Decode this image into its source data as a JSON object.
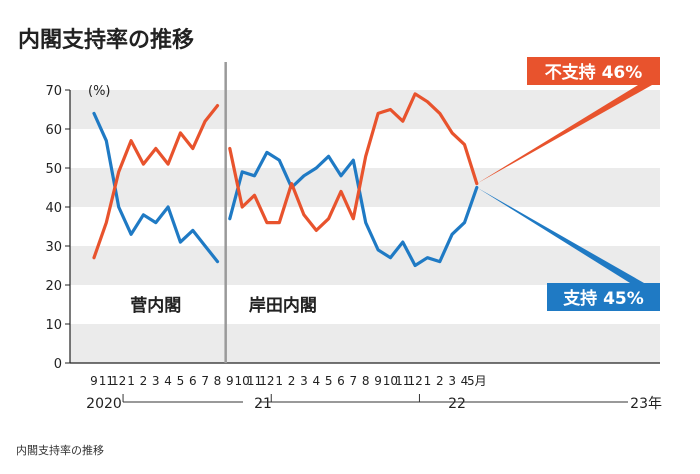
{
  "title": "内閣支持率の推移",
  "caption": "内閣支持率の推移",
  "colors": {
    "support": "#1f7ac4",
    "disapprove": "#e8532d",
    "band": "#ebebeb",
    "divider": "#9a9a9a"
  },
  "chart_data": {
    "type": "line",
    "title": "内閣支持率の推移",
    "ylabel": "(%)",
    "ylim": [
      0,
      70
    ],
    "yticks": [
      0,
      10,
      20,
      30,
      40,
      50,
      60,
      70
    ],
    "x_labels": [
      "9",
      "11",
      "12",
      "1",
      "2",
      "3",
      "4",
      "5",
      "6",
      "7",
      "8",
      "9",
      "10",
      "11",
      "12",
      "1",
      "2",
      "3",
      "4",
      "5",
      "6",
      "7",
      "8",
      "9",
      "10",
      "11",
      "12",
      "1",
      "2",
      "3",
      "4",
      "5月"
    ],
    "year_labels": [
      "2020",
      "21",
      "22",
      "23年"
    ],
    "cabinets": [
      {
        "name": "菅内閣",
        "from": 0,
        "to": 10
      },
      {
        "name": "岸田内閣",
        "from": 11,
        "to": 31
      }
    ],
    "series": [
      {
        "name": "支持",
        "values": [
          64,
          57,
          40,
          33,
          38,
          36,
          40,
          31,
          34,
          30,
          26,
          37,
          49,
          48,
          54,
          52,
          45,
          48,
          50,
          53,
          48,
          52,
          36,
          29,
          27,
          31,
          25,
          27,
          26,
          33,
          36,
          45
        ]
      },
      {
        "name": "不支持",
        "values": [
          27,
          36,
          49,
          57,
          51,
          55,
          51,
          59,
          55,
          62,
          66,
          55,
          40,
          43,
          36,
          36,
          46,
          38,
          34,
          37,
          44,
          37,
          53,
          64,
          65,
          62,
          69,
          67,
          64,
          59,
          56,
          46
        ]
      }
    ],
    "annotations": [
      {
        "series": "不支持",
        "text": "不支持 46%"
      },
      {
        "series": "支持",
        "text": "支持 45%"
      }
    ]
  }
}
